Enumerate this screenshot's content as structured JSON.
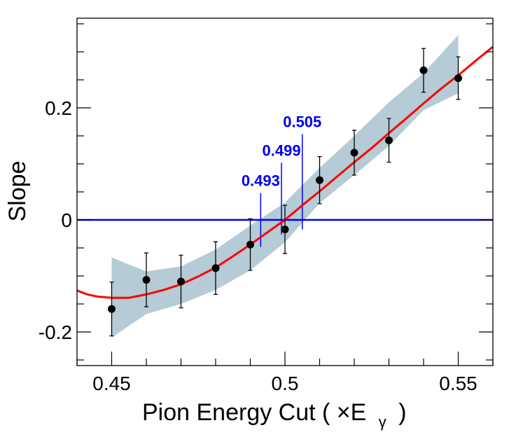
{
  "chart_data": {
    "type": "scatter",
    "xlabel_main": "Pion Energy Cut ( ×E",
    "xlabel_sub": "γ",
    "xlabel_close": ")",
    "ylabel": "Slope",
    "xlim": [
      0.44,
      0.56
    ],
    "ylim": [
      -0.26,
      0.36
    ],
    "x_ticks": [
      {
        "value": 0.45,
        "label": "0.45"
      },
      {
        "value": 0.5,
        "label": "0.5"
      },
      {
        "value": 0.55,
        "label": "0.55"
      }
    ],
    "y_ticks": [
      {
        "value": -0.2,
        "label": "-0.2"
      },
      {
        "value": 0,
        "label": "0"
      },
      {
        "value": 0.2,
        "label": "0.2"
      }
    ],
    "points": [
      {
        "x": 0.45,
        "y": -0.159,
        "err": 0.048
      },
      {
        "x": 0.46,
        "y": -0.107,
        "err": 0.048
      },
      {
        "x": 0.47,
        "y": -0.11,
        "err": 0.047
      },
      {
        "x": 0.48,
        "y": -0.086,
        "err": 0.047
      },
      {
        "x": 0.49,
        "y": -0.044,
        "err": 0.046
      },
      {
        "x": 0.5,
        "y": -0.017,
        "err": 0.043
      },
      {
        "x": 0.51,
        "y": 0.071,
        "err": 0.042
      },
      {
        "x": 0.52,
        "y": 0.12,
        "err": 0.04
      },
      {
        "x": 0.53,
        "y": 0.142,
        "err": 0.039
      },
      {
        "x": 0.54,
        "y": 0.267,
        "err": 0.039
      },
      {
        "x": 0.55,
        "y": 0.253,
        "err": 0.038
      }
    ],
    "fit_curve": {
      "color": "#ff0000",
      "x": [
        0.44,
        0.443,
        0.446,
        0.45,
        0.455,
        0.46,
        0.465,
        0.47,
        0.475,
        0.48,
        0.485,
        0.49,
        0.495,
        0.5,
        0.505,
        0.51,
        0.515,
        0.52,
        0.525,
        0.53,
        0.535,
        0.54,
        0.545,
        0.55,
        0.555,
        0.56
      ],
      "y": [
        -0.126,
        -0.133,
        -0.137,
        -0.139,
        -0.139,
        -0.133,
        -0.125,
        -0.115,
        -0.101,
        -0.085,
        -0.065,
        -0.044,
        -0.022,
        0.0,
        0.026,
        0.051,
        0.077,
        0.103,
        0.128,
        0.155,
        0.181,
        0.208,
        0.234,
        0.258,
        0.284,
        0.309
      ]
    },
    "error_band": {
      "color": "#b5cbd6",
      "x": [
        0.45,
        0.46,
        0.47,
        0.48,
        0.49,
        0.5,
        0.51,
        0.52,
        0.53,
        0.54,
        0.55
      ],
      "upper": [
        -0.067,
        -0.092,
        -0.083,
        -0.053,
        -0.01,
        0.031,
        0.093,
        0.15,
        0.21,
        0.262,
        0.33
      ],
      "lower": [
        -0.21,
        -0.168,
        -0.15,
        -0.125,
        -0.09,
        -0.04,
        0.03,
        0.08,
        0.132,
        0.196,
        0.226
      ]
    },
    "zero_line": {
      "y": 0,
      "color": "#0000ee"
    },
    "annotations": [
      {
        "x": 0.493,
        "label": "0.493",
        "y_bottom": -0.048,
        "y_top": 0.048
      },
      {
        "x": 0.499,
        "label": "0.499",
        "y_bottom": -0.026,
        "y_top": 0.102
      },
      {
        "x": 0.505,
        "label": "0.505",
        "y_bottom": -0.017,
        "y_top": 0.153
      }
    ]
  }
}
